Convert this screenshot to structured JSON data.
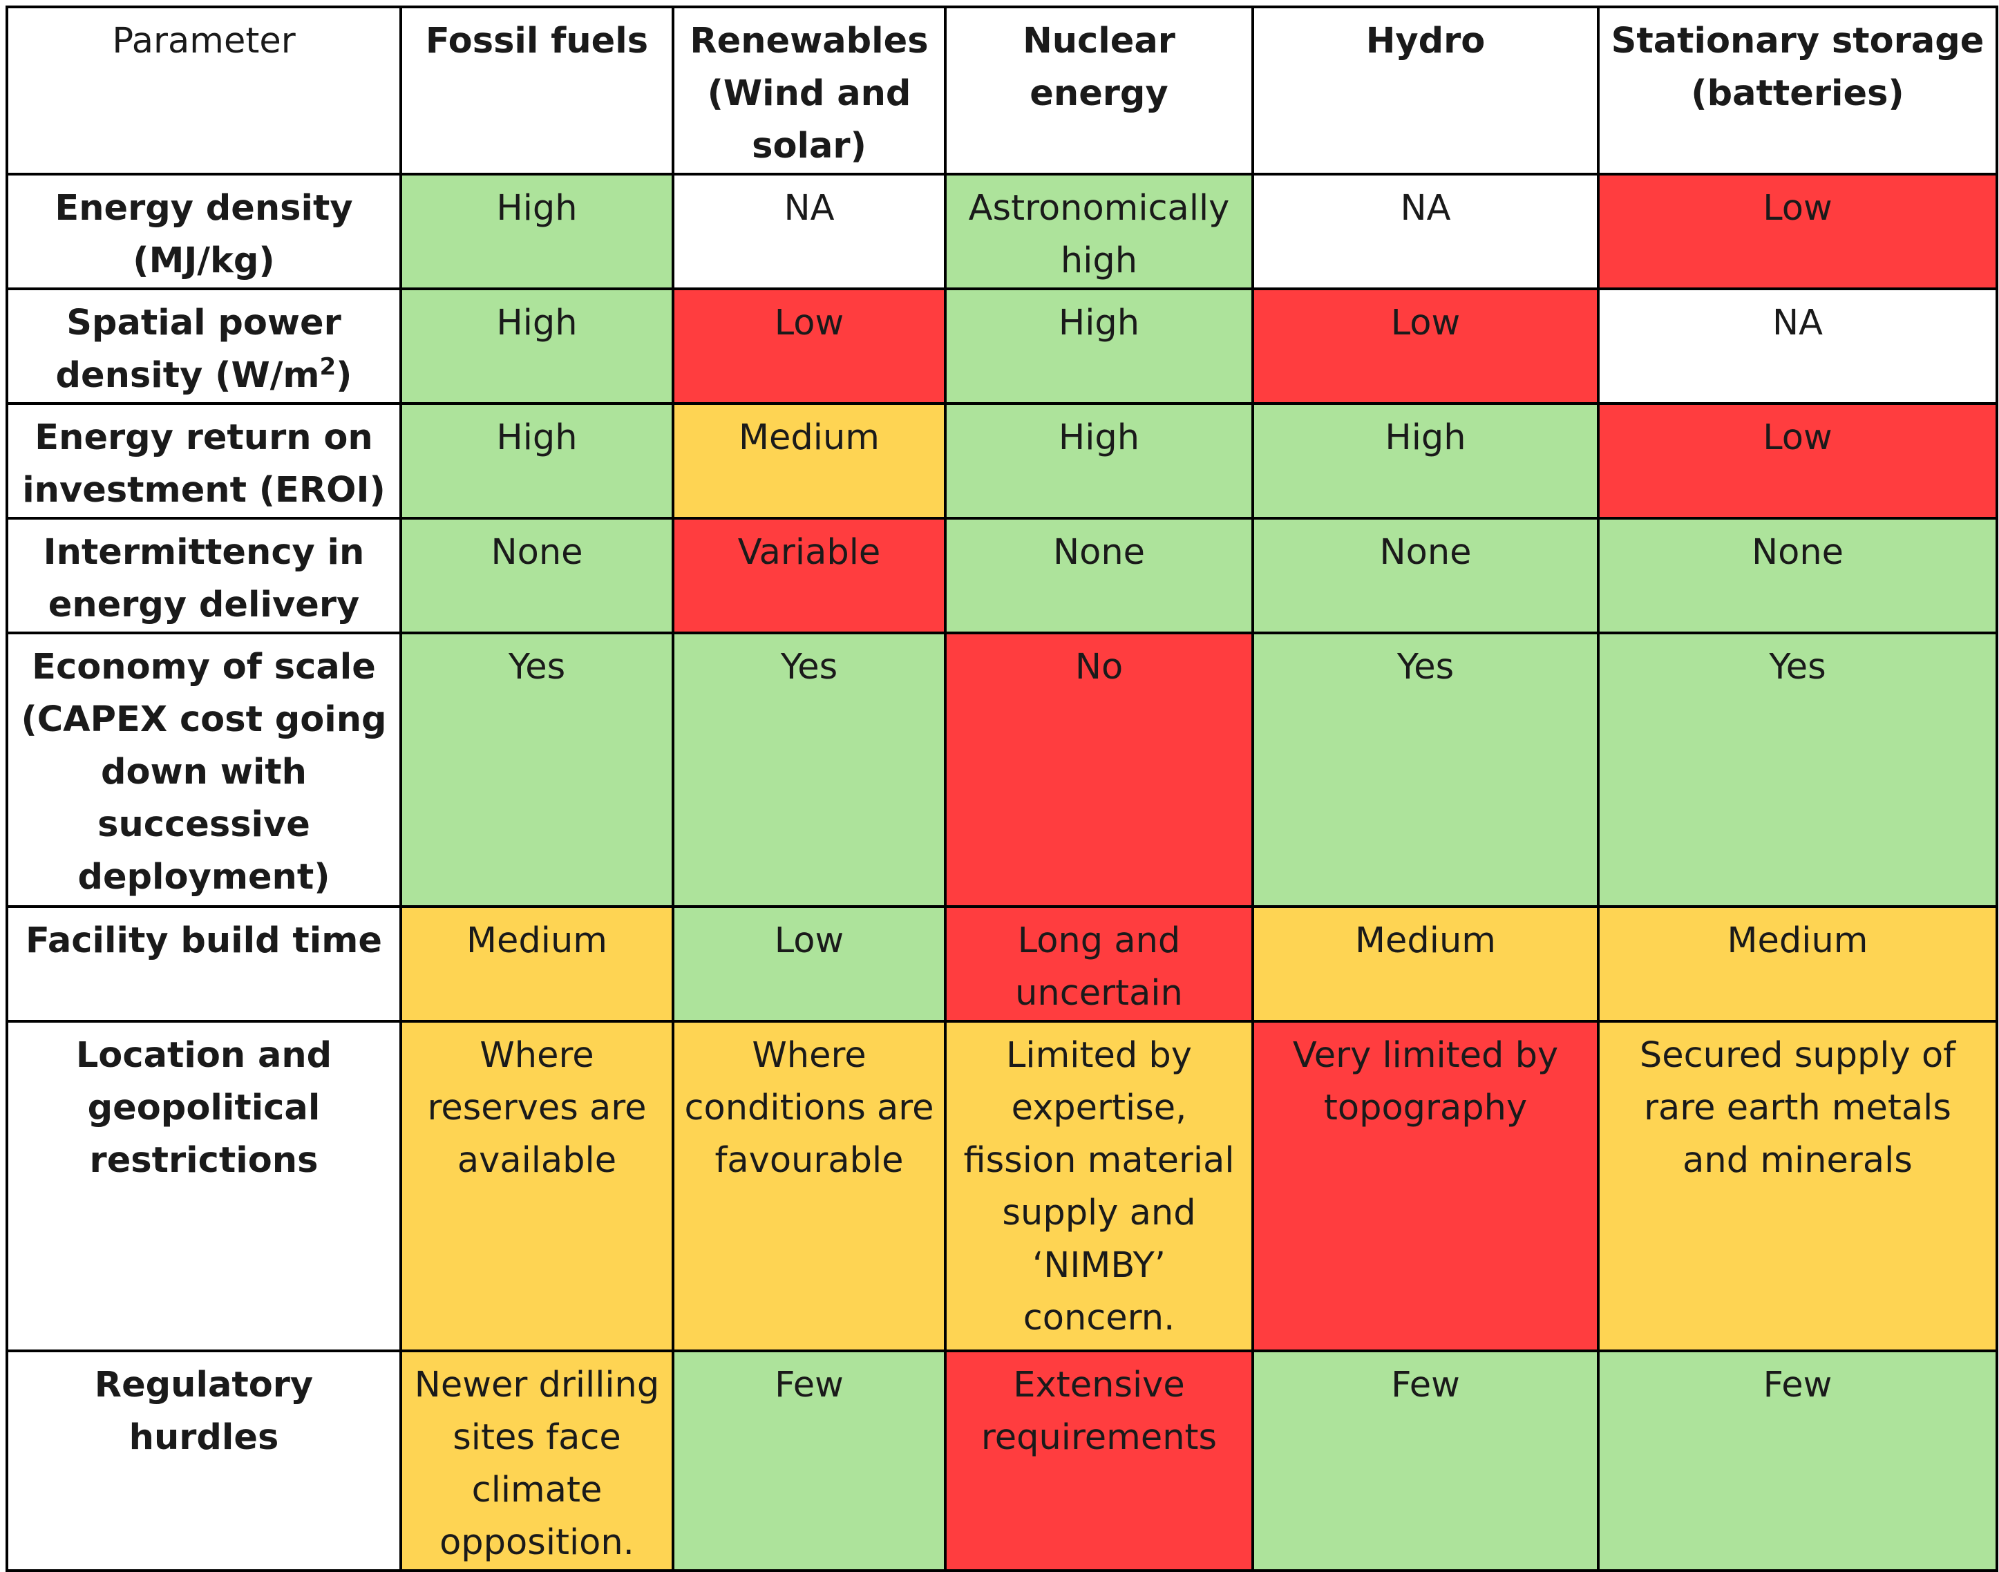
{
  "colors": {
    "green": "#ade39b",
    "red": "#ff3d3f",
    "yellow": "#fed453",
    "white": "#ffffff"
  },
  "table": {
    "headers": [
      "Parameter",
      "Fossil fuels",
      "Renewables (Wind and solar)",
      "Nuclear energy",
      "Hydro",
      "Stationary storage (batteries)"
    ],
    "rows": [
      {
        "parameter": "Energy density (MJ/kg)",
        "cells": [
          {
            "text": "High",
            "color": "green"
          },
          {
            "text": "NA",
            "color": "white"
          },
          {
            "text": "Astronomically high",
            "color": "green"
          },
          {
            "text": "NA",
            "color": "white"
          },
          {
            "text": "Low",
            "color": "red"
          }
        ]
      },
      {
        "parameter": "Spatial power density (W/m2)",
        "cells": [
          {
            "text": "High",
            "color": "green"
          },
          {
            "text": "Low",
            "color": "red"
          },
          {
            "text": "High",
            "color": "green"
          },
          {
            "text": "Low",
            "color": "red"
          },
          {
            "text": "NA",
            "color": "white"
          }
        ]
      },
      {
        "parameter": "Energy return on investment (EROI)",
        "cells": [
          {
            "text": "High",
            "color": "green"
          },
          {
            "text": "Medium",
            "color": "yellow"
          },
          {
            "text": "High",
            "color": "green"
          },
          {
            "text": "High",
            "color": "green"
          },
          {
            "text": "Low",
            "color": "red"
          }
        ]
      },
      {
        "parameter": "Intermittency in energy delivery",
        "cells": [
          {
            "text": "None",
            "color": "green"
          },
          {
            "text": "Variable",
            "color": "red"
          },
          {
            "text": "None",
            "color": "green"
          },
          {
            "text": "None",
            "color": "green"
          },
          {
            "text": "None",
            "color": "green"
          }
        ]
      },
      {
        "parameter": "Economy of scale (CAPEX cost going down with successive deployment)",
        "cells": [
          {
            "text": "Yes",
            "color": "green"
          },
          {
            "text": "Yes",
            "color": "green"
          },
          {
            "text": "No",
            "color": "red"
          },
          {
            "text": "Yes",
            "color": "green"
          },
          {
            "text": "Yes",
            "color": "green"
          }
        ]
      },
      {
        "parameter": "Facility build time",
        "cells": [
          {
            "text": "Medium",
            "color": "yellow"
          },
          {
            "text": "Low",
            "color": "green"
          },
          {
            "text": "Long and uncertain",
            "color": "red"
          },
          {
            "text": "Medium",
            "color": "yellow"
          },
          {
            "text": "Medium",
            "color": "yellow"
          }
        ]
      },
      {
        "parameter": "Location and geopolitical restrictions",
        "cells": [
          {
            "text": "Where reserves are available",
            "color": "yellow"
          },
          {
            "text": "Where conditions are favourable",
            "color": "yellow"
          },
          {
            "text": "Limited by expertise, fission material supply and ‘NIMBY’ concern.",
            "color": "yellow"
          },
          {
            "text": "Very limited by topography",
            "color": "red"
          },
          {
            "text": "Secured supply of rare earth metals and minerals",
            "color": "yellow"
          }
        ]
      },
      {
        "parameter": "Regulatory hurdles",
        "cells": [
          {
            "text": "Newer drilling sites face climate opposition.",
            "color": "yellow"
          },
          {
            "text": "Few",
            "color": "green"
          },
          {
            "text": "Extensive requirements",
            "color": "red"
          },
          {
            "text": "Few",
            "color": "green"
          },
          {
            "text": "Few",
            "color": "green"
          }
        ]
      }
    ]
  }
}
